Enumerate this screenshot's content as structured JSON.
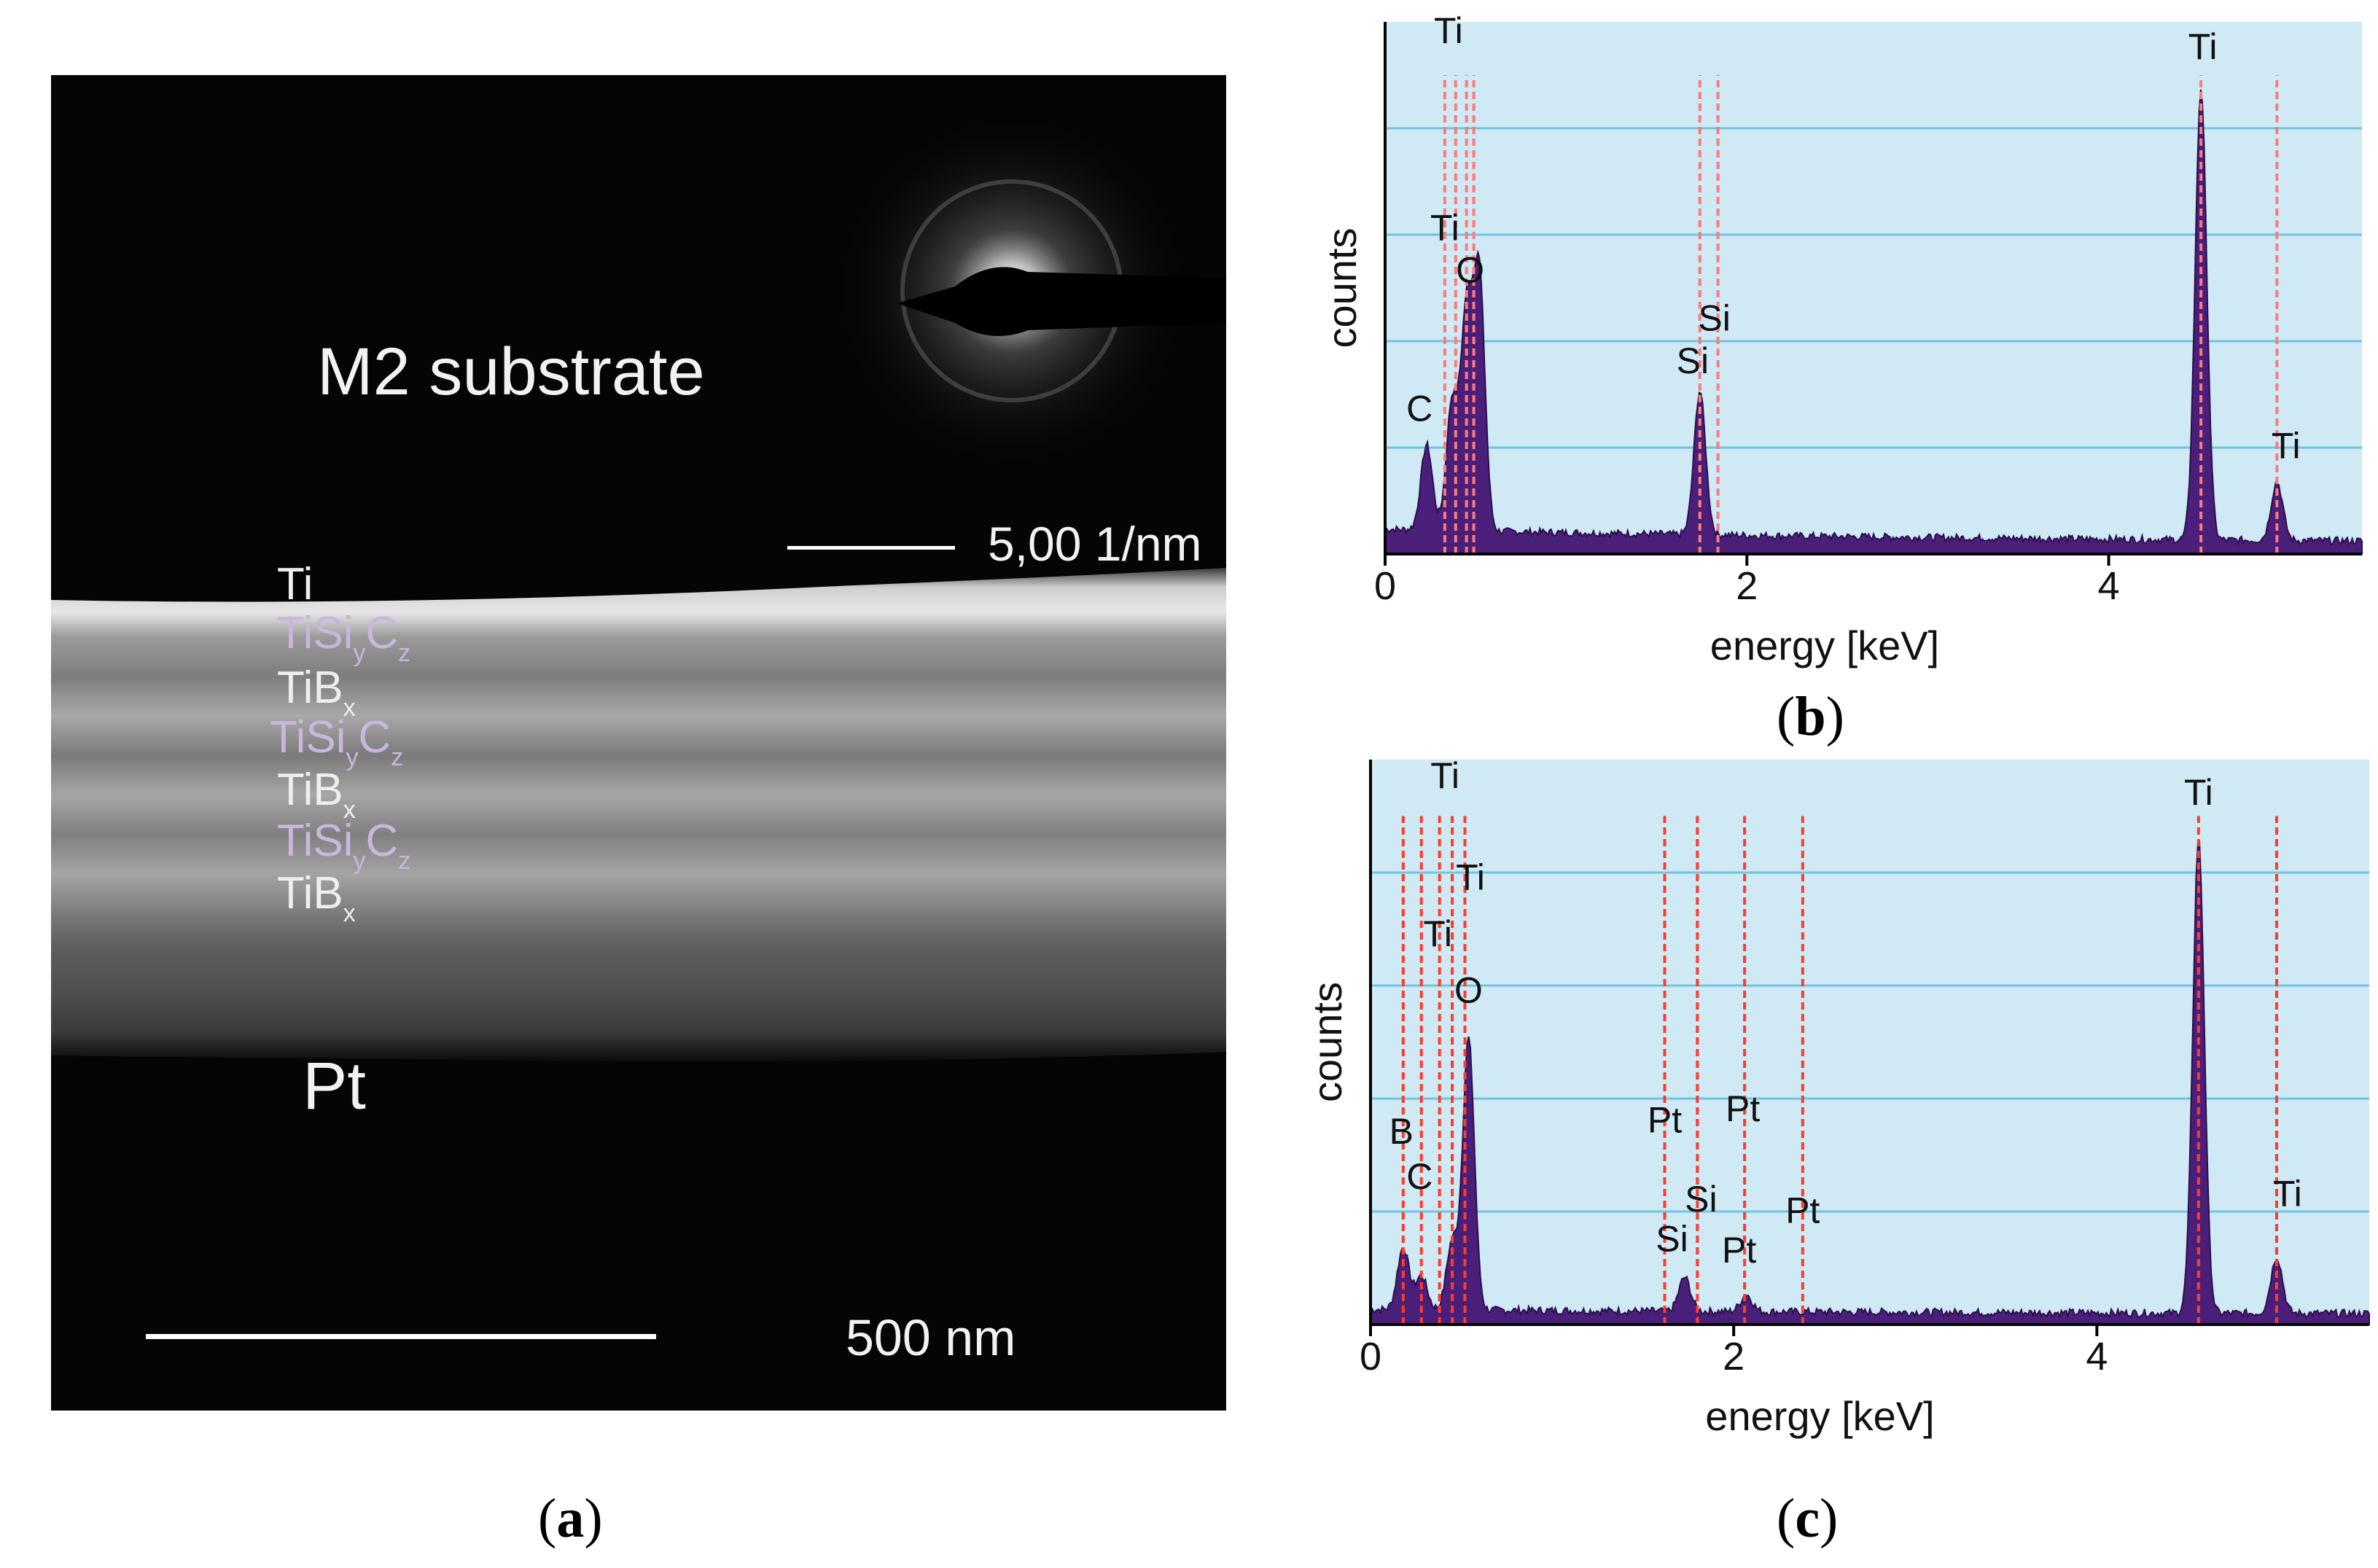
{
  "panels": {
    "a": {
      "label": "a",
      "substrate_label": "M2 substrate",
      "diffraction_scale": "5,00 1/nm",
      "bottom_label": "Pt",
      "scale_bar": "500 nm",
      "layers": [
        {
          "base": "Ti",
          "parts": [],
          "color": "#eeeeee"
        },
        {
          "base": "TiSi",
          "parts": [
            {
              "s": "y"
            },
            {
              "t": "C"
            },
            {
              "s": "z"
            }
          ],
          "color": "#c8b6dc"
        },
        {
          "base": "TiB",
          "parts": [
            {
              "s": "x"
            }
          ],
          "color": "#eeeeee"
        },
        {
          "base": "TiSi",
          "parts": [
            {
              "s": "y"
            },
            {
              "t": "C"
            },
            {
              "s": "z"
            }
          ],
          "color": "#c8b6dc"
        },
        {
          "base": "TiB",
          "parts": [
            {
              "s": "x"
            }
          ],
          "color": "#eeeeee"
        },
        {
          "base": "TiSi",
          "parts": [
            {
              "s": "y"
            },
            {
              "t": "C"
            },
            {
              "s": "z"
            }
          ],
          "color": "#c8b6dc"
        },
        {
          "base": "TiB",
          "parts": [
            {
              "s": "x"
            }
          ],
          "color": "#eeeeee"
        }
      ]
    },
    "b": {
      "label": "b"
    },
    "c": {
      "label": "c"
    }
  },
  "chart_data": [
    {
      "id": "b",
      "type": "line",
      "title": "",
      "xlabel": "energy [keV]",
      "ylabel": "counts",
      "xlim": [
        0,
        5.4
      ],
      "ylim": [
        0,
        100
      ],
      "xticks": [
        0,
        2,
        4
      ],
      "grid": true,
      "background": "#cfe9f5",
      "fill_color": "#4a1f7a",
      "line_color": "#ff7a7a",
      "peaks": [
        {
          "x": 0.23,
          "h": 16
        },
        {
          "x": 0.37,
          "h": 24
        },
        {
          "x": 0.45,
          "h": 40
        },
        {
          "x": 0.52,
          "h": 48
        },
        {
          "x": 1.74,
          "h": 27
        },
        {
          "x": 4.51,
          "h": 85
        },
        {
          "x": 4.93,
          "h": 11
        }
      ],
      "baseline": 3,
      "annotations": [
        {
          "text": "Ti",
          "x": 0.35,
          "y": 96
        },
        {
          "text": "Ti",
          "x": 0.33,
          "y": 59
        },
        {
          "text": "O",
          "x": 0.47,
          "y": 51
        },
        {
          "text": "C",
          "x": 0.19,
          "y": 25
        },
        {
          "text": "Si",
          "x": 1.82,
          "y": 42
        },
        {
          "text": "Si",
          "x": 1.7,
          "y": 34
        },
        {
          "text": "Ti",
          "x": 4.52,
          "y": 93
        },
        {
          "text": "Ti",
          "x": 4.98,
          "y": 18
        }
      ],
      "marker_lines": [
        0.33,
        0.39,
        0.45,
        0.49,
        1.74,
        1.84,
        4.51,
        4.93
      ]
    },
    {
      "id": "c",
      "type": "line",
      "title": "",
      "xlabel": "energy [keV]",
      "ylabel": "counts",
      "xlim": [
        0,
        5.5
      ],
      "ylim": [
        0,
        100
      ],
      "xticks": [
        0,
        2,
        4
      ],
      "grid": true,
      "background": "#cfe9f5",
      "fill_color": "#4a1f7a",
      "line_color": "#ff3b2b",
      "peaks": [
        {
          "x": 0.18,
          "h": 11
        },
        {
          "x": 0.28,
          "h": 6
        },
        {
          "x": 0.45,
          "h": 12
        },
        {
          "x": 0.54,
          "h": 48
        },
        {
          "x": 1.73,
          "h": 6
        },
        {
          "x": 2.07,
          "h": 3
        },
        {
          "x": 4.56,
          "h": 84
        },
        {
          "x": 4.99,
          "h": 10
        }
      ],
      "baseline": 1,
      "annotations": [
        {
          "text": "Ti",
          "x": 0.41,
          "y": 95
        },
        {
          "text": "Ti",
          "x": 0.55,
          "y": 77
        },
        {
          "text": "Ti",
          "x": 0.37,
          "y": 67
        },
        {
          "text": "O",
          "x": 0.54,
          "y": 57
        },
        {
          "text": "B",
          "x": 0.17,
          "y": 32
        },
        {
          "text": "C",
          "x": 0.27,
          "y": 24
        },
        {
          "text": "Pt",
          "x": 1.62,
          "y": 34
        },
        {
          "text": "Pt",
          "x": 2.05,
          "y": 36
        },
        {
          "text": "Si",
          "x": 1.82,
          "y": 20
        },
        {
          "text": "Pt",
          "x": 2.38,
          "y": 18
        },
        {
          "text": "Si",
          "x": 1.66,
          "y": 13
        },
        {
          "text": "Pt",
          "x": 2.03,
          "y": 11
        },
        {
          "text": "Ti",
          "x": 4.56,
          "y": 92
        },
        {
          "text": "Ti",
          "x": 5.05,
          "y": 21
        }
      ],
      "marker_lines": [
        0.18,
        0.28,
        0.38,
        0.45,
        0.52,
        1.62,
        1.8,
        2.06,
        2.38,
        4.56,
        4.99
      ]
    }
  ]
}
